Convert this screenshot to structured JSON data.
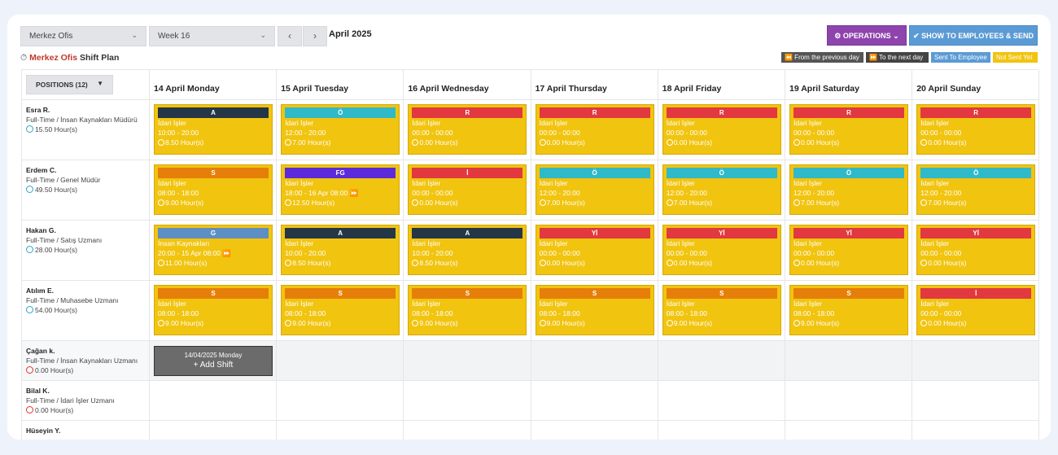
{
  "toolbar": {
    "location_select": "Merkez Ofis",
    "week_select": "Week 16",
    "prev": "‹",
    "next": "›",
    "month": "April 2025",
    "operations": "⚙ OPERATIONS ⌄",
    "send": "✔ SHOW TO EMPLOYEES & SEND"
  },
  "plan": {
    "location": "Merkez Ofis",
    "title": " Shift Plan",
    "clock": "⏱"
  },
  "legend": [
    {
      "label": "⏪ From the previous day",
      "color": "#555555"
    },
    {
      "label": "⏩ To the next day",
      "color": "#444444"
    },
    {
      "label": "Sent To Employee",
      "color": "#5b9bd5"
    },
    {
      "label": "Not Sent Yet",
      "color": "#f1c40f"
    }
  ],
  "positions_button": "POSITIONS (12)",
  "days": [
    "14 April Monday",
    "15 April Tuesday",
    "16 April Wednesday",
    "17 April Thursday",
    "18 April Friday",
    "19 April Saturday",
    "20 April Sunday"
  ],
  "employees": [
    {
      "name": "Esra R.",
      "title": "Full-Time / İnsan Kaynakları Müdürü",
      "hours": "15.50 Hour(s)",
      "hours_color": "teal",
      "shifts": [
        {
          "code": "A",
          "code_color": "#253746",
          "dept": "İdari İşler",
          "time": "10:00 - 20:00",
          "hours": "8.50 Hour(s)"
        },
        {
          "code": "Ö",
          "code_color": "#2fb9c9",
          "dept": "İdari İşler",
          "time": "12:00 - 20:00",
          "hours": "7.00 Hour(s)"
        },
        {
          "code": "R",
          "code_color": "#e2383f",
          "dept": "İdari İşler",
          "time": "00:00 - 00:00",
          "hours": "0.00 Hour(s)"
        },
        {
          "code": "R",
          "code_color": "#e2383f",
          "dept": "İdari İşler",
          "time": "00:00 - 00:00",
          "hours": "0.00 Hour(s)"
        },
        {
          "code": "R",
          "code_color": "#e2383f",
          "dept": "İdari İşler",
          "time": "00:00 - 00:00",
          "hours": "0.00 Hour(s)"
        },
        {
          "code": "R",
          "code_color": "#e2383f",
          "dept": "İdari İşler",
          "time": "00:00 - 00:00",
          "hours": "0.00 Hour(s)"
        },
        {
          "code": "R",
          "code_color": "#e2383f",
          "dept": "İdari İşler",
          "time": "00:00 - 00:00",
          "hours": "0.00 Hour(s)"
        }
      ]
    },
    {
      "name": "Erdem C.",
      "title": "Full-Time / Genel Müdür",
      "hours": "49.50 Hour(s)",
      "hours_color": "teal",
      "shifts": [
        {
          "code": "S",
          "code_color": "#e67e0a",
          "dept": "İdari İşler",
          "time": "08:00 - 18:00",
          "hours": "9.00 Hour(s)"
        },
        {
          "code": "FG",
          "code_color": "#5b2bd9",
          "dept": "İdari İşler",
          "time": "18:00 - 16 Apr 08:00 ⏩",
          "hours": "12.50 Hour(s)"
        },
        {
          "code": "İ",
          "code_color": "#e2383f",
          "dept": "İdari İşler",
          "time": "00:00 - 00:00",
          "hours": "0.00 Hour(s)"
        },
        {
          "code": "Ö",
          "code_color": "#2fb9c9",
          "dept": "İdari İşler",
          "time": "12:00 - 20:00",
          "hours": "7.00 Hour(s)"
        },
        {
          "code": "Ö",
          "code_color": "#2fb9c9",
          "dept": "İdari İşler",
          "time": "12:00 - 20:00",
          "hours": "7.00 Hour(s)"
        },
        {
          "code": "Ö",
          "code_color": "#2fb9c9",
          "dept": "İdari İşler",
          "time": "12:00 - 20:00",
          "hours": "7.00 Hour(s)"
        },
        {
          "code": "Ö",
          "code_color": "#2fb9c9",
          "dept": "İdari İşler",
          "time": "12:00 - 20:00",
          "hours": "7.00 Hour(s)"
        }
      ]
    },
    {
      "name": "Hakan G.",
      "title": "Full-Time / Satış Uzmanı",
      "hours": "28.00 Hour(s)",
      "hours_color": "teal",
      "shifts": [
        {
          "code": "G",
          "code_color": "#5d8fc4",
          "dept": "İnsan Kaynakları",
          "time": "20:00 - 15 Apr 08:00 ⏩",
          "hours": "11.00 Hour(s)"
        },
        {
          "code": "A",
          "code_color": "#253746",
          "dept": "İdari İşler",
          "time": "10:00 - 20:00",
          "hours": "8.50 Hour(s)"
        },
        {
          "code": "A",
          "code_color": "#253746",
          "dept": "İdari İşler",
          "time": "10:00 - 20:00",
          "hours": "8.50 Hour(s)"
        },
        {
          "code": "Yİ",
          "code_color": "#e2383f",
          "dept": "İdari İşler",
          "time": "00:00 - 00:00",
          "hours": "0.00 Hour(s)"
        },
        {
          "code": "Yİ",
          "code_color": "#e2383f",
          "dept": "İdari İşler",
          "time": "00:00 - 00:00",
          "hours": "0.00 Hour(s)"
        },
        {
          "code": "Yİ",
          "code_color": "#e2383f",
          "dept": "İdari İşler",
          "time": "00:00 - 00:00",
          "hours": "0.00 Hour(s)"
        },
        {
          "code": "Yİ",
          "code_color": "#e2383f",
          "dept": "İdari İşler",
          "time": "00:00 - 00:00",
          "hours": "0.00 Hour(s)"
        }
      ]
    },
    {
      "name": "Atılım E.",
      "title": "Full-Time / Muhasebe Uzmanı",
      "hours": "54.00 Hour(s)",
      "hours_color": "teal",
      "shifts": [
        {
          "code": "S",
          "code_color": "#e67e0a",
          "dept": "İdari İşler",
          "time": "08:00 - 18:00",
          "hours": "9.00 Hour(s)"
        },
        {
          "code": "S",
          "code_color": "#e67e0a",
          "dept": "İdari İşler",
          "time": "08:00 - 18:00",
          "hours": "9.00 Hour(s)"
        },
        {
          "code": "S",
          "code_color": "#e67e0a",
          "dept": "İdari İşler",
          "time": "08:00 - 18:00",
          "hours": "9.00 Hour(s)"
        },
        {
          "code": "S",
          "code_color": "#e67e0a",
          "dept": "İdari İşler",
          "time": "08:00 - 18:00",
          "hours": "9.00 Hour(s)"
        },
        {
          "code": "S",
          "code_color": "#e67e0a",
          "dept": "İdari İşler",
          "time": "08:00 - 18:00",
          "hours": "9.00 Hour(s)"
        },
        {
          "code": "S",
          "code_color": "#e67e0a",
          "dept": "İdari İşler",
          "time": "08:00 - 18:00",
          "hours": "9.00 Hour(s)"
        },
        {
          "code": "İ",
          "code_color": "#e2383f",
          "dept": "İdari İşler",
          "time": "00:00 - 00:00",
          "hours": "0.00 Hour(s)"
        }
      ]
    },
    {
      "name": "Çağan k.",
      "title": "Full-Time / İnsan Kaynakları Uzmanı",
      "hours": "0.00 Hour(s)",
      "hours_color": "red",
      "add_shift": {
        "date": "14/04/2025 Monday",
        "label": "+ Add Shift"
      },
      "shifts": []
    },
    {
      "name": "Bilal K.",
      "title": "Full-Time / İdari İşler Uzmanı",
      "hours": "0.00 Hour(s)",
      "hours_color": "red",
      "shifts": []
    },
    {
      "name": "Hüseyin Y.",
      "title": "",
      "hours": "",
      "hours_color": "red",
      "shifts": []
    }
  ]
}
